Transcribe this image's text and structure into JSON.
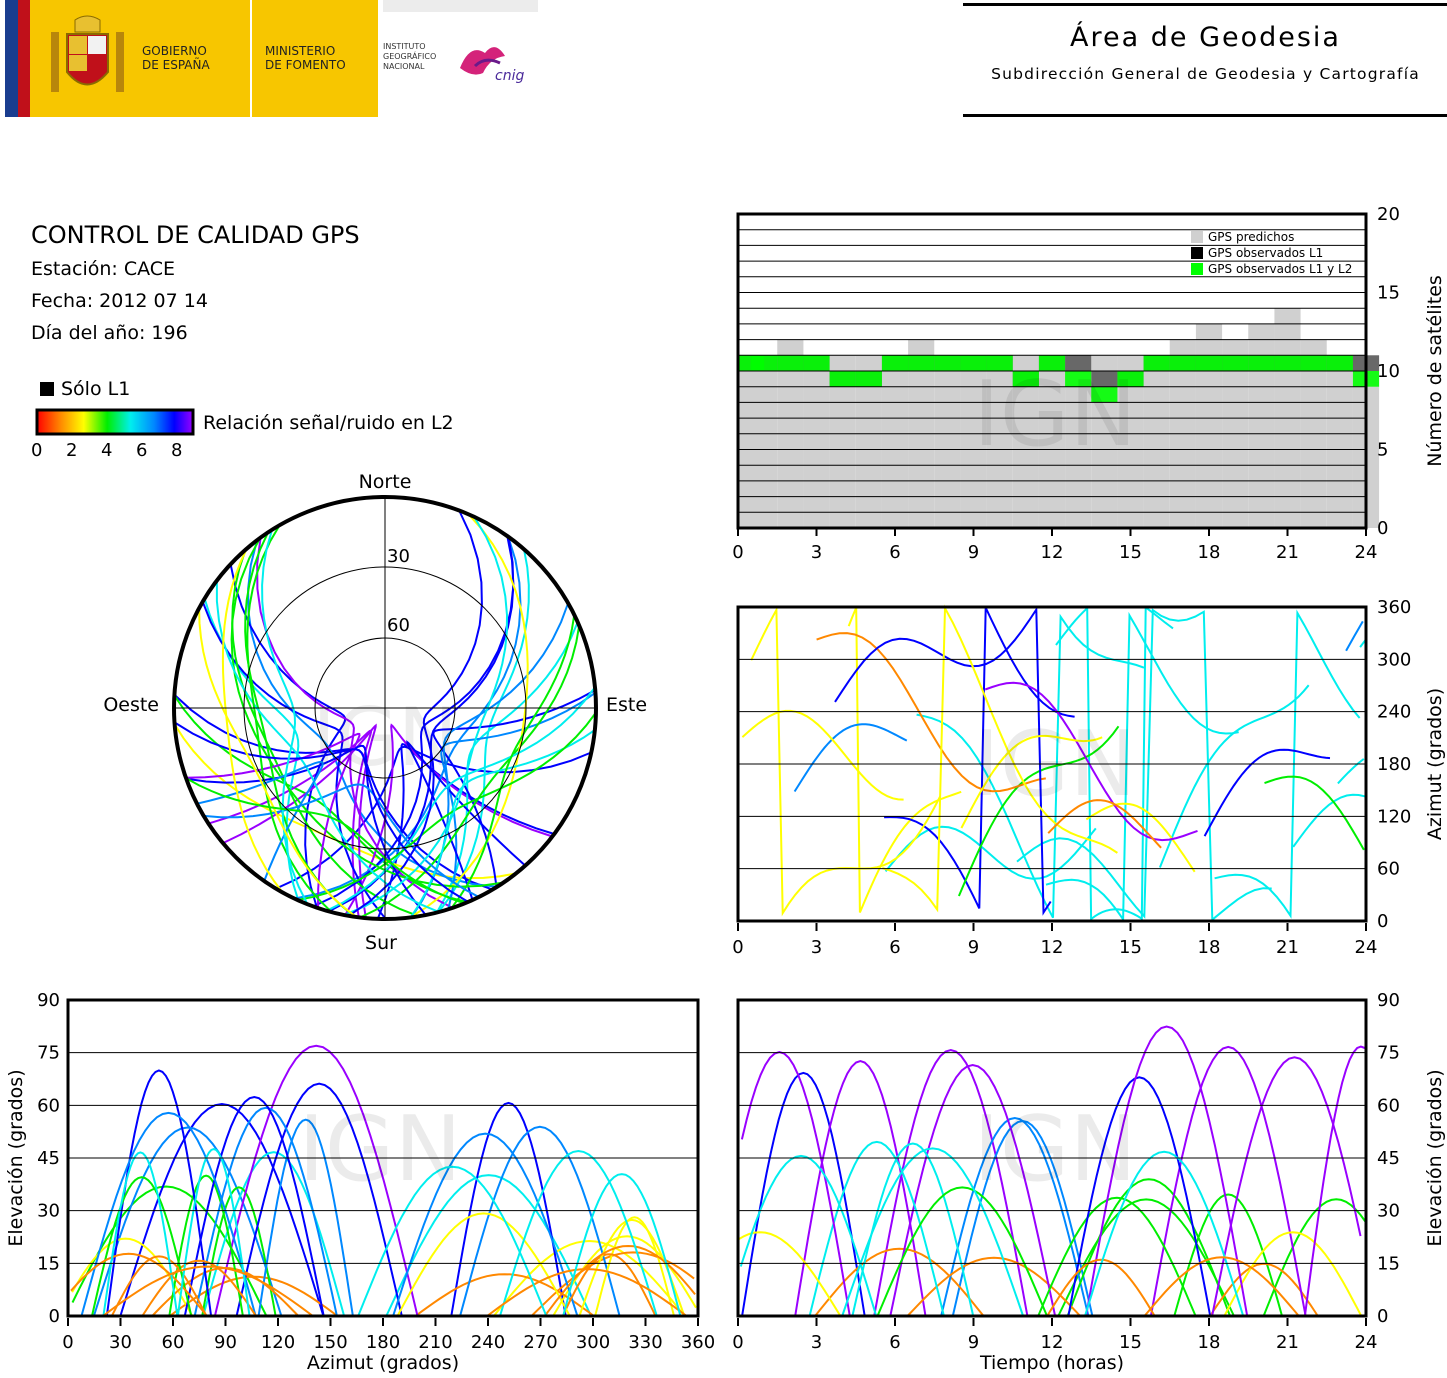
{
  "header": {
    "gov_line1": "GOBIERNO",
    "gov_line2": "DE ESPAÑA",
    "ministry_line1": "MINISTERIO",
    "ministry_line2": "DE FOMENTO",
    "inst_line1": "INSTITUTO",
    "inst_line2": "GEOGRÁFICO",
    "inst_line3": "NACIONAL",
    "cnig_logo_text": "cnig",
    "area_title": "Área de Geodesia",
    "area_subtitle": "Subdirección General de Geodesia y Cartografía"
  },
  "report": {
    "title": "CONTROL DE CALIDAD GPS",
    "station": "Estación: CACE",
    "date": "Fecha: 2012 07 14",
    "doy": "Día del año: 196"
  },
  "legend": {
    "only_l1": "Sólo L1",
    "snr_label": "Relación señal/ruido en L2",
    "snr_ticks": [
      "0",
      "2",
      "4",
      "6",
      "8"
    ],
    "colormap": [
      "#ff0000",
      "#ff8800",
      "#ffff00",
      "#00ee00",
      "#00eeee",
      "#0088ff",
      "#0000ff",
      "#9900ff"
    ]
  },
  "watermark": "IGN",
  "chart_data": [
    {
      "id": "skyplot",
      "type": "scatter",
      "projection": "polar",
      "directions": {
        "north": "Norte",
        "south": "Sur",
        "east": "Este",
        "west": "Oeste"
      },
      "elevation_rings": [
        "30",
        "60"
      ],
      "series": [
        {
          "x_unit": "azimuth_deg",
          "y_unit": "elevation_deg",
          "points": [
            [
              30,
              3
            ],
            [
              40,
              20
            ],
            [
              50,
              45
            ],
            [
              60,
              70
            ],
            [
              90,
              75
            ],
            [
              120,
              60
            ],
            [
              135,
              40
            ],
            [
              150,
              20
            ],
            [
              160,
              5
            ],
            [
              330,
              3
            ],
            [
              320,
              20
            ],
            [
              310,
              45
            ],
            [
              300,
              70
            ],
            [
              270,
              75
            ],
            [
              240,
              60
            ],
            [
              225,
              40
            ],
            [
              210,
              20
            ],
            [
              200,
              5
            ],
            [
              180,
              88
            ],
            [
              175,
              70
            ],
            [
              170,
              50
            ],
            [
              165,
              30
            ],
            [
              160,
              10
            ]
          ]
        }
      ]
    },
    {
      "id": "satellites",
      "type": "bar",
      "ylabel": "Número de satélites",
      "xlim": [
        0,
        24
      ],
      "ylim": [
        0,
        20
      ],
      "xticks": [
        "0",
        "3",
        "6",
        "9",
        "12",
        "15",
        "18",
        "21",
        "24"
      ],
      "yticks": [
        "0",
        "5",
        "10",
        "15",
        "20"
      ],
      "legend_position": "top-right",
      "series": [
        {
          "name": "GPS predichos",
          "color": "#d0d0d0",
          "x": [
            0,
            1,
            2,
            3,
            4,
            5,
            6,
            7,
            8,
            9,
            10,
            11,
            12,
            13,
            14,
            15,
            16,
            17,
            18,
            19,
            20,
            21,
            22,
            23,
            24
          ],
          "values": [
            11,
            11,
            12,
            11,
            11,
            11,
            11,
            12,
            11,
            11,
            11,
            11,
            11,
            11,
            11,
            11,
            11,
            12,
            13,
            12,
            13,
            14,
            12,
            11,
            11
          ]
        },
        {
          "name": "GPS observados L1",
          "color": "#000000",
          "x": [
            0,
            1,
            2,
            3,
            4,
            5,
            6,
            7,
            8,
            9,
            10,
            11,
            12,
            13,
            14,
            15,
            16,
            17,
            18,
            19,
            20,
            21,
            22,
            23,
            24
          ],
          "values": [
            10,
            10,
            10,
            10,
            9,
            9,
            10,
            10,
            10,
            10,
            10,
            9,
            10,
            10,
            9,
            9,
            10,
            10,
            10,
            10,
            10,
            10,
            10,
            10,
            10
          ]
        },
        {
          "name": "GPS observados L1 y L2",
          "color": "#00ff00",
          "x": [
            0,
            1,
            2,
            3,
            4,
            5,
            6,
            7,
            8,
            9,
            10,
            11,
            12,
            13,
            14,
            15,
            16,
            17,
            18,
            19,
            20,
            21,
            22,
            23,
            24
          ],
          "values": [
            10,
            10,
            10,
            10,
            9,
            9,
            10,
            10,
            10,
            10,
            10,
            9,
            10,
            9,
            8,
            9,
            10,
            10,
            10,
            10,
            10,
            10,
            10,
            10,
            9
          ]
        }
      ]
    },
    {
      "id": "azimuth_time",
      "type": "scatter",
      "ylabel": "Azimut (grados)",
      "xlim": [
        0,
        24
      ],
      "ylim": [
        0,
        360
      ],
      "xticks": [
        "0",
        "3",
        "6",
        "9",
        "12",
        "15",
        "18",
        "21",
        "24"
      ],
      "yticks": [
        "0",
        "60",
        "120",
        "180",
        "240",
        "300",
        "360"
      ]
    },
    {
      "id": "elevation_azimuth",
      "type": "scatter",
      "xlabel": "Azimut (grados)",
      "ylabel": "Elevación (grados)",
      "xlim": [
        0,
        360
      ],
      "ylim": [
        0,
        90
      ],
      "xticks": [
        "0",
        "30",
        "60",
        "90",
        "120",
        "150",
        "180",
        "210",
        "240",
        "270",
        "300",
        "330",
        "360"
      ],
      "yticks": [
        "0",
        "15",
        "30",
        "45",
        "60",
        "75",
        "90"
      ]
    },
    {
      "id": "elevation_time",
      "type": "scatter",
      "xlabel": "Tiempo (horas)",
      "ylabel": "Elevación (grados)",
      "xlim": [
        0,
        24
      ],
      "ylim": [
        0,
        90
      ],
      "xticks": [
        "0",
        "3",
        "6",
        "9",
        "12",
        "15",
        "18",
        "21",
        "24"
      ],
      "yticks": [
        "0",
        "15",
        "30",
        "45",
        "60",
        "75",
        "90"
      ]
    }
  ]
}
